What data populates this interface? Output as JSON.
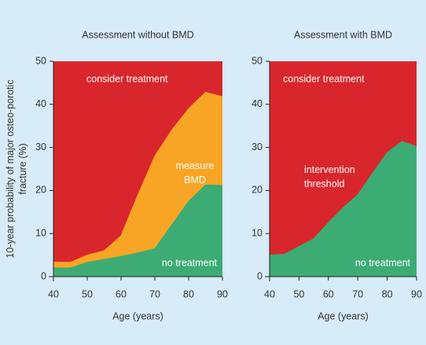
{
  "ylabel": "10-year probability of major osteo-porotic fracture (%)",
  "chart_data": [
    {
      "type": "area",
      "title": "Assessment without BMD",
      "xlabel": "Age (years)",
      "x": [
        40,
        45,
        50,
        55,
        60,
        65,
        70,
        75,
        80,
        85,
        90
      ],
      "xlim": [
        40,
        90
      ],
      "ylim": [
        0,
        50
      ],
      "xticks": [
        40,
        50,
        60,
        70,
        80,
        90
      ],
      "yticks": [
        0,
        10,
        20,
        30,
        40,
        50
      ],
      "top_label": "consider treatment",
      "top_color": "#d9262c",
      "series": [
        {
          "name": "measure BMD",
          "color": "#f8a526",
          "values": [
            3.4,
            3.3,
            5,
            6,
            9.5,
            19,
            28,
            34,
            39,
            42.8,
            41.8
          ]
        },
        {
          "name": "no treatment",
          "color": "#3cac74",
          "values": [
            2,
            2,
            3.3,
            4,
            4.7,
            5.5,
            6.5,
            12,
            17.5,
            21.3,
            21.2
          ]
        }
      ]
    },
    {
      "type": "area",
      "title": "Assessment with BMD",
      "xlabel": "Age (years)",
      "x": [
        40,
        45,
        50,
        55,
        60,
        65,
        70,
        75,
        80,
        85,
        90
      ],
      "xlim": [
        40,
        90
      ],
      "ylim": [
        0,
        50
      ],
      "xticks": [
        40,
        50,
        60,
        70,
        80,
        90
      ],
      "yticks": [
        0,
        10,
        20,
        30,
        40,
        50
      ],
      "top_label": "consider treatment",
      "top_color": "#d9262c",
      "annotation": "intervention threshold",
      "series": [
        {
          "name": "no treatment",
          "color": "#3cac74",
          "values": [
            5,
            5.2,
            7,
            8.8,
            12.5,
            16,
            19,
            24,
            28.8,
            31.4,
            30.2
          ]
        }
      ]
    }
  ]
}
